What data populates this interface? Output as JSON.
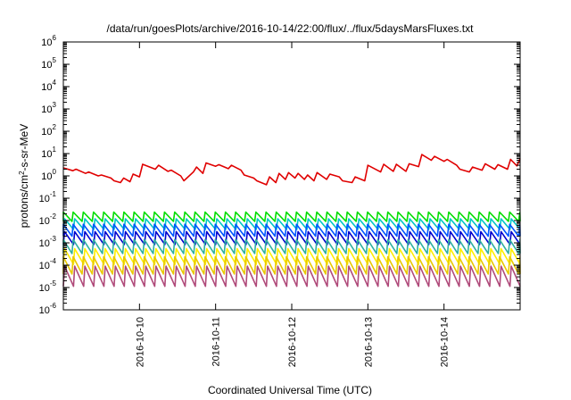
{
  "chart_data": {
    "type": "line",
    "title": "/data/run/goesPlots/archive/2016-10-14/22:00/flux/../flux/5daysMarsFluxes.txt",
    "xlabel": "Coordinated Universal Time (UTC)",
    "ylabel": {
      "pre": "protons/cm",
      "sup": "2",
      "post": "-s-sr-MeV"
    },
    "xlim": [
      "2016-10-09T00:00",
      "2016-10-15T00:00"
    ],
    "ylim": [
      1e-06,
      1000000.0
    ],
    "yscale": "log",
    "yticks": [
      {
        "base": "10",
        "exp": "-6",
        "value": 1e-06
      },
      {
        "base": "10",
        "exp": "-5",
        "value": 1e-05
      },
      {
        "base": "10",
        "exp": "-4",
        "value": 0.0001
      },
      {
        "base": "10",
        "exp": "-3",
        "value": 0.001
      },
      {
        "base": "10",
        "exp": "-2",
        "value": 0.01
      },
      {
        "base": "10",
        "exp": "-1",
        "value": 0.1
      },
      {
        "base": "10",
        "exp": "0",
        "value": 1.0
      },
      {
        "base": "10",
        "exp": "1",
        "value": 10.0
      },
      {
        "base": "10",
        "exp": "2",
        "value": 100.0
      },
      {
        "base": "10",
        "exp": "3",
        "value": 1000.0
      },
      {
        "base": "10",
        "exp": "4",
        "value": 10000.0
      },
      {
        "base": "10",
        "exp": "5",
        "value": 100000.0
      },
      {
        "base": "10",
        "exp": "6",
        "value": 1000000.0
      }
    ],
    "xticks": [
      {
        "label": "2016-10-10",
        "value": "2016-10-10T00:00"
      },
      {
        "label": "2016-10-11",
        "value": "2016-10-11T00:00"
      },
      {
        "label": "2016-10-12",
        "value": "2016-10-12T00:00"
      },
      {
        "label": "2016-10-13",
        "value": "2016-10-13T00:00"
      },
      {
        "label": "2016-10-14",
        "value": "2016-10-14T00:00"
      }
    ],
    "grid": false,
    "legend": "none",
    "series": [
      {
        "color": "#e00000",
        "x": [
          "2016-10-09T00:00",
          "2016-10-09T03:00",
          "2016-10-09T04:00",
          "2016-10-09T07:00",
          "2016-10-09T08:00",
          "2016-10-09T11:00",
          "2016-10-09T12:00",
          "2016-10-09T15:00",
          "2016-10-09T16:00",
          "2016-10-09T18:00",
          "2016-10-09T19:00",
          "2016-10-09T21:00",
          "2016-10-09T22:00",
          "2016-10-10T00:00",
          "2016-10-10T01:00",
          "2016-10-10T05:00",
          "2016-10-10T06:00",
          "2016-10-10T09:00",
          "2016-10-10T10:00",
          "2016-10-10T13:00",
          "2016-10-10T14:00",
          "2016-10-10T17:00",
          "2016-10-10T18:00",
          "2016-10-10T20:00",
          "2016-10-10T21:00",
          "2016-10-11T00:00",
          "2016-10-11T01:00",
          "2016-10-11T04:00",
          "2016-10-11T05:00",
          "2016-10-11T08:00",
          "2016-10-11T09:00",
          "2016-10-11T12:00",
          "2016-10-11T13:00",
          "2016-10-11T16:00",
          "2016-10-11T17:00",
          "2016-10-11T19:00",
          "2016-10-11T20:00",
          "2016-10-11T22:00",
          "2016-10-11T23:00",
          "2016-10-12T01:00",
          "2016-10-12T02:00",
          "2016-10-12T04:00",
          "2016-10-12T05:00",
          "2016-10-12T07:00",
          "2016-10-12T08:00",
          "2016-10-12T11:00",
          "2016-10-12T12:00",
          "2016-10-12T15:00",
          "2016-10-12T16:00",
          "2016-10-12T19:00",
          "2016-10-12T20:00",
          "2016-10-12T23:00",
          "2016-10-13T00:00",
          "2016-10-13T04:00",
          "2016-10-13T05:00",
          "2016-10-13T08:00",
          "2016-10-13T09:00",
          "2016-10-13T12:00",
          "2016-10-13T13:00",
          "2016-10-13T16:00",
          "2016-10-13T17:00",
          "2016-10-13T20:00",
          "2016-10-13T21:00",
          "2016-10-14T00:00",
          "2016-10-14T01:00",
          "2016-10-14T04:00",
          "2016-10-14T05:00",
          "2016-10-14T08:00",
          "2016-10-14T09:00",
          "2016-10-14T12:00",
          "2016-10-14T13:00",
          "2016-10-14T16:00",
          "2016-10-14T17:00",
          "2016-10-14T20:00",
          "2016-10-14T21:00",
          "2016-10-14T23:00",
          "2016-10-15T00:00"
        ],
        "y": [
          2.3,
          1.7,
          2.0,
          1.3,
          1.5,
          1.0,
          1.1,
          0.8,
          0.6,
          0.5,
          0.8,
          0.55,
          1.2,
          0.9,
          3.3,
          2.0,
          3.0,
          1.6,
          1.8,
          1.0,
          0.6,
          1.5,
          2.5,
          1.3,
          3.8,
          2.7,
          3.2,
          2.1,
          3.0,
          1.8,
          1.1,
          0.8,
          0.6,
          0.4,
          0.9,
          0.5,
          1.3,
          0.7,
          1.4,
          0.8,
          1.3,
          0.7,
          1.1,
          0.6,
          1.4,
          0.7,
          1.2,
          0.9,
          0.6,
          0.5,
          0.9,
          0.6,
          3.0,
          1.5,
          3.3,
          1.6,
          3.3,
          1.6,
          3.5,
          2.6,
          9.0,
          5.0,
          7.5,
          4.5,
          5.5,
          3.0,
          2.0,
          1.5,
          2.5,
          1.8,
          3.5,
          2.0,
          3.2,
          2.0,
          5.5,
          2.8,
          6.0
        ]
      },
      {
        "color": "#00dd00",
        "x": [
          "2016-10-09T00:00",
          "2016-10-15T00:00"
        ],
        "y": [
          0.024,
          0.024
        ],
        "sawtooth_period_hours": 3.2,
        "sawtooth_depth": 2.6
      },
      {
        "color": "#00c6c6",
        "x": [
          "2016-10-09T00:00",
          "2016-10-15T00:00"
        ],
        "y": [
          0.012,
          0.012
        ],
        "sawtooth_period_hours": 3.2,
        "sawtooth_depth": 3.0
      },
      {
        "color": "#0055ff",
        "x": [
          "2016-10-09T00:00",
          "2016-10-15T00:00"
        ],
        "y": [
          0.0068,
          0.0068
        ],
        "sawtooth_period_hours": 3.2,
        "sawtooth_depth": 3.4
      },
      {
        "color": "#0000cc",
        "x": [
          "2016-10-09T00:00",
          "2016-10-15T00:00"
        ],
        "y": [
          0.0032,
          0.0032
        ],
        "sawtooth_period_hours": 3.2,
        "sawtooth_depth": 3.8
      },
      {
        "color": "#30b0a0",
        "x": [
          "2016-10-09T00:00",
          "2016-10-15T00:00"
        ],
        "y": [
          0.0014,
          0.0014
        ],
        "sawtooth_period_hours": 3.2,
        "sawtooth_depth": 4.2
      },
      {
        "color": "#ffee00",
        "x": [
          "2016-10-09T00:00",
          "2016-10-15T00:00"
        ],
        "y": [
          0.00055,
          0.00055
        ],
        "sawtooth_period_hours": 3.2,
        "sawtooth_depth": 5.0
      },
      {
        "color": "#e8c800",
        "x": [
          "2016-10-09T00:00",
          "2016-10-15T00:00"
        ],
        "y": [
          0.00024,
          0.00024
        ],
        "sawtooth_period_hours": 3.2,
        "sawtooth_depth": 6.0
      },
      {
        "color": "#b04a7a",
        "x": [
          "2016-10-09T00:00",
          "2016-10-15T00:00"
        ],
        "y": [
          9e-05,
          9e-05
        ],
        "sawtooth_period_hours": 3.2,
        "sawtooth_depth": 8.0
      }
    ]
  }
}
